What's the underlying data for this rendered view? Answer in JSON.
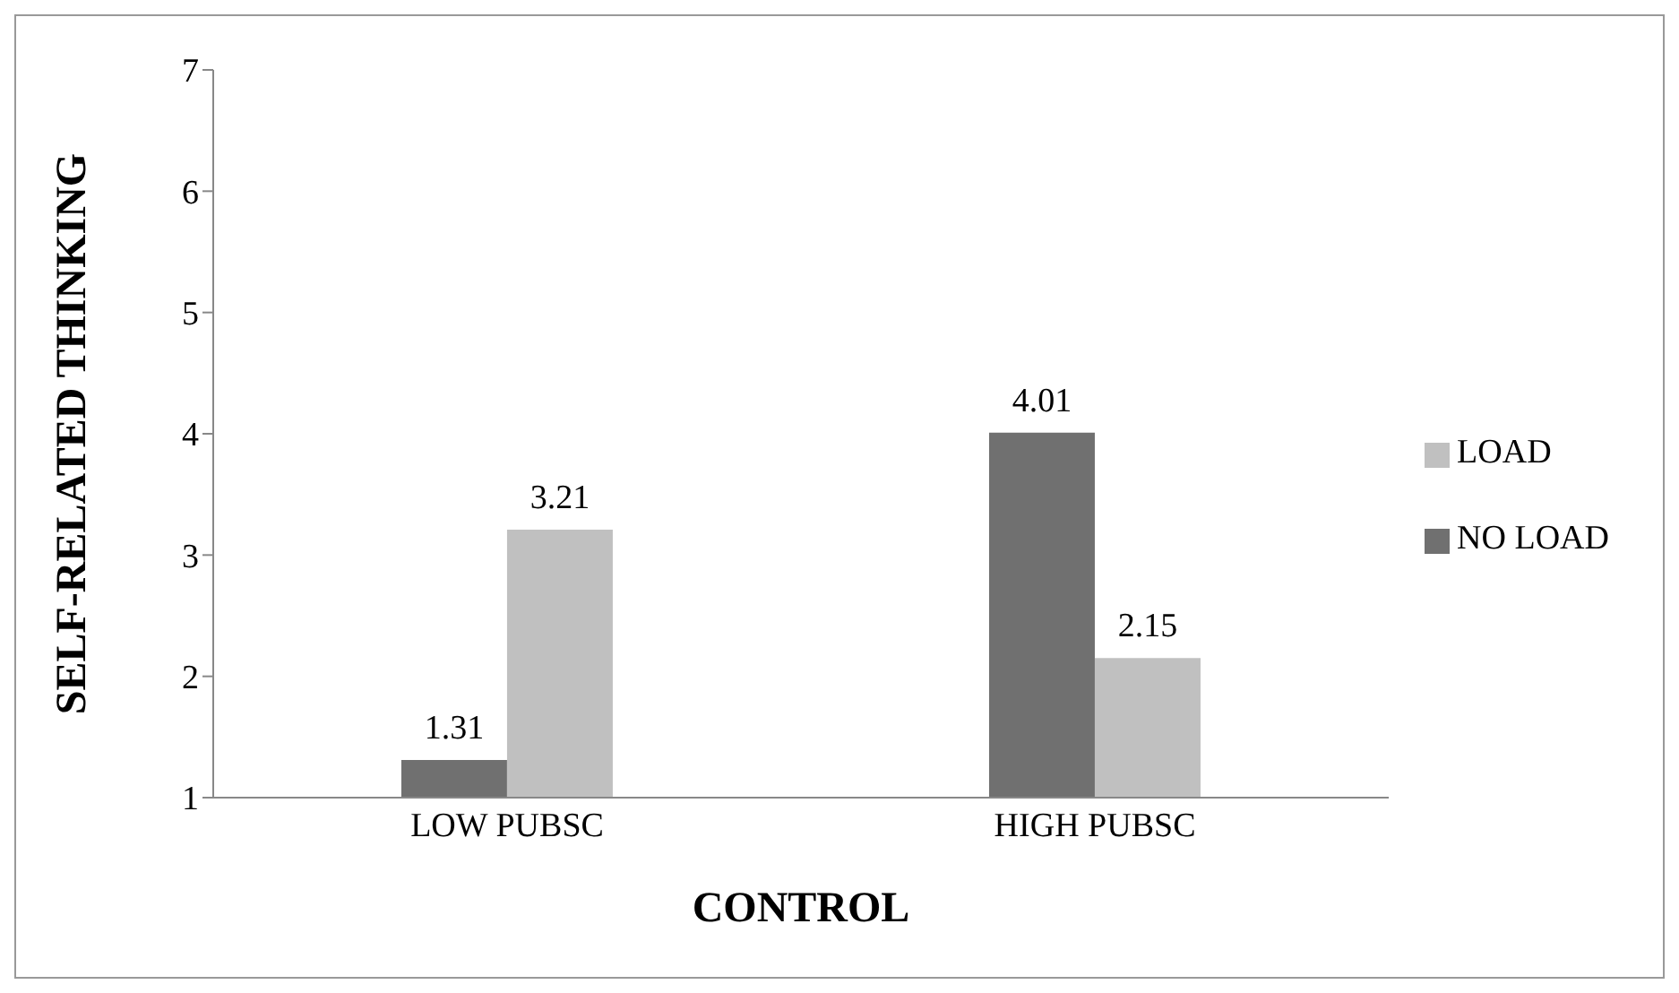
{
  "chart_data": {
    "type": "bar",
    "xlabel": "CONTROL",
    "ylabel": "SELF-RELATED THINKING",
    "categories": [
      "LOW PUBSC",
      "HIGH PUBSC"
    ],
    "series": [
      {
        "name": "NO LOAD",
        "color": "#707070",
        "values": [
          1.31,
          4.01
        ]
      },
      {
        "name": "LOAD",
        "color": "#c0c0c0",
        "values": [
          3.21,
          2.15
        ]
      }
    ],
    "ylim": [
      1,
      7
    ],
    "yticks": [
      1,
      2,
      3,
      4,
      5,
      6,
      7
    ],
    "grid": false,
    "legend": "right",
    "data_labels": true
  }
}
